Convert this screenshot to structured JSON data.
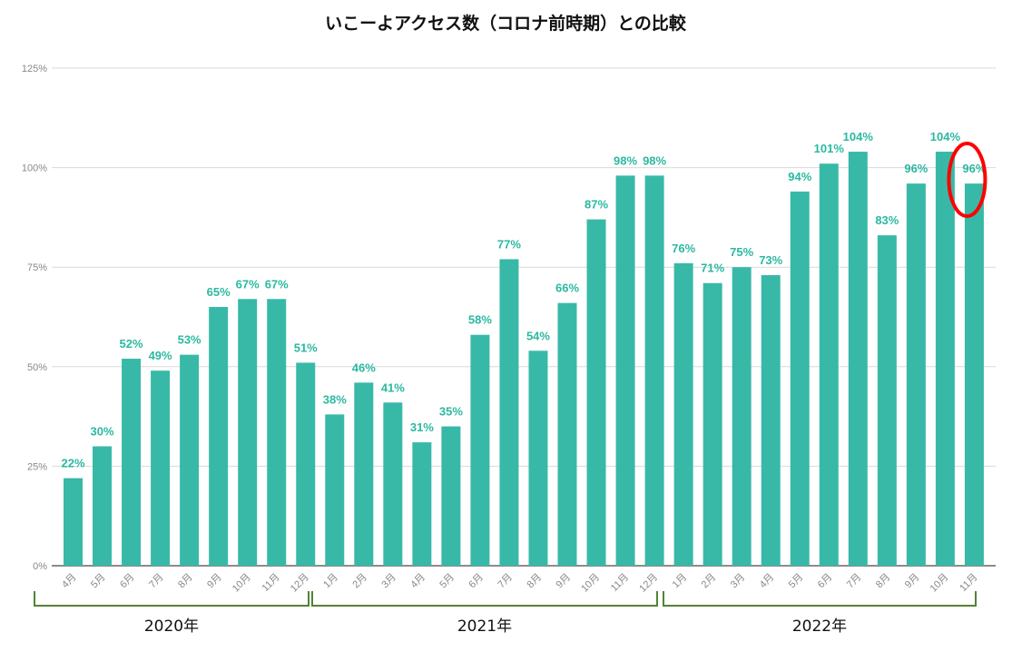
{
  "chart_data": {
    "type": "bar",
    "title": "いこーよアクセス数（コロナ前時期）との比較",
    "categories": [
      "4月",
      "5月",
      "6月",
      "7月",
      "8月",
      "9月",
      "10月",
      "11月",
      "12月",
      "1月",
      "2月",
      "3月",
      "4月",
      "5月",
      "6月",
      "7月",
      "8月",
      "9月",
      "10月",
      "11月",
      "12月",
      "1月",
      "2月",
      "3月",
      "4月",
      "5月",
      "6月",
      "7月",
      "8月",
      "9月",
      "10月",
      "11月"
    ],
    "values": [
      22,
      30,
      52,
      49,
      53,
      65,
      67,
      67,
      51,
      38,
      46,
      41,
      31,
      35,
      58,
      77,
      54,
      66,
      87,
      98,
      98,
      76,
      71,
      75,
      73,
      94,
      101,
      104,
      83,
      96,
      104,
      96
    ],
    "data_labels": [
      "22%",
      "30%",
      "52%",
      "49%",
      "53%",
      "65%",
      "67%",
      "67%",
      "51%",
      "38%",
      "46%",
      "41%",
      "31%",
      "35%",
      "58%",
      "77%",
      "54%",
      "66%",
      "87%",
      "98%",
      "98%",
      "76%",
      "71%",
      "75%",
      "73%",
      "94%",
      "101%",
      "104%",
      "83%",
      "96%",
      "104%",
      "96%"
    ],
    "groups": [
      {
        "label": "2020年",
        "count": 9
      },
      {
        "label": "2021年",
        "count": 12
      },
      {
        "label": "2022年",
        "count": 11
      }
    ],
    "yticks": [
      "0%",
      "25%",
      "50%",
      "75%",
      "100%",
      "125%"
    ],
    "ytick_values": [
      0,
      25,
      50,
      75,
      100,
      125
    ],
    "ylim": [
      0,
      125
    ],
    "xlabel": "",
    "ylabel": "",
    "grid": true,
    "highlight_index": 31,
    "colors": {
      "bar": "#38b9a8",
      "label": "#2bb9a0",
      "bracket": "#548235",
      "highlight": "#ff0000"
    }
  }
}
